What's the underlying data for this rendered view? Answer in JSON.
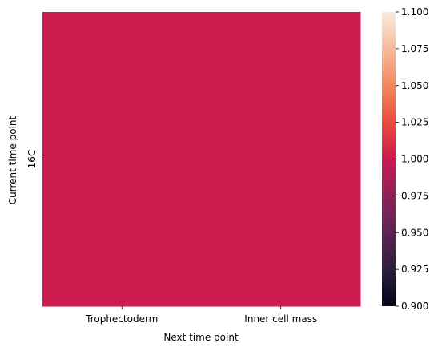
{
  "chart_data": {
    "type": "heatmap",
    "title": "",
    "xlabel": "Next time point",
    "ylabel": "Current time point",
    "x_categories": [
      "Trophectoderm",
      "Inner cell mass"
    ],
    "y_categories": [
      "16C"
    ],
    "values": [
      [
        1.0,
        1.0
      ]
    ],
    "colorbar": {
      "vmin": 0.9,
      "vmax": 1.1,
      "ticks": [
        "0.900",
        "0.925",
        "0.950",
        "0.975",
        "1.000",
        "1.025",
        "1.050",
        "1.075",
        "1.100"
      ],
      "colormap": "rocket"
    },
    "cell_color": "#cb1b4f",
    "grid": false
  }
}
